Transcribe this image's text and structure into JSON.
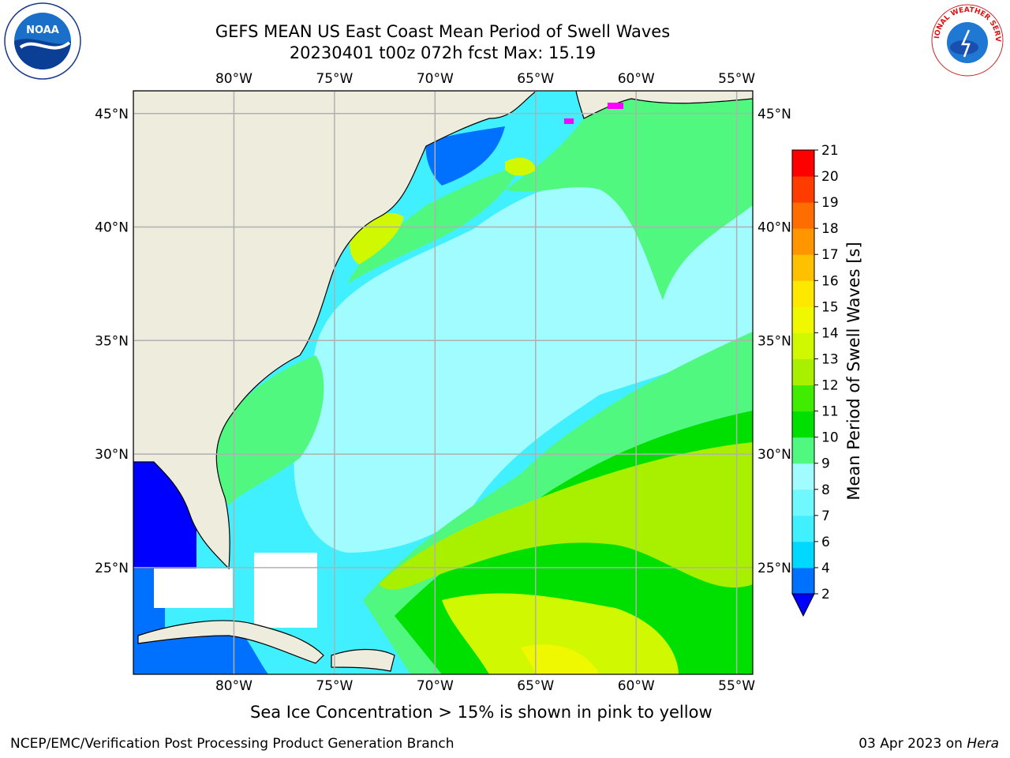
{
  "header": {
    "title_line1": "GEFS MEAN US East Coast Mean Period of Swell Waves",
    "title_line2": "20230401 t00z 072h fcst   Max: 15.19"
  },
  "logos": {
    "left": {
      "text": "NOAA",
      "ring_text": "NATIONAL OCEANIC AND ATMOSPHERIC ADMINISTRATION · U.S. DEPARTMENT OF COMMERCE",
      "icon": "noaa-logo"
    },
    "right": {
      "text": "NATIONAL WEATHER SERVICE",
      "icon": "nws-logo"
    }
  },
  "map": {
    "lon_labels": [
      "80°W",
      "75°W",
      "70°W",
      "65°W",
      "60°W",
      "55°W"
    ],
    "lat_labels": [
      "45°N",
      "40°N",
      "35°N",
      "30°N",
      "25°N"
    ],
    "lon_values": [
      -80,
      -75,
      -70,
      -65,
      -60,
      -55
    ],
    "lat_values": [
      45,
      40,
      35,
      30,
      25
    ],
    "extent": {
      "lon_min": -85,
      "lon_max": -54.2,
      "lat_min": 20.3,
      "lat_max": 46.0
    },
    "land_color": "#eeecdc",
    "grid_color": "#b0b0b0"
  },
  "colorbar": {
    "label": "Mean Period of Swell Waves [s]",
    "ticks": [
      "2",
      "4",
      "6",
      "7",
      "8",
      "9",
      "10",
      "11",
      "12",
      "13",
      "14",
      "15",
      "16",
      "17",
      "18",
      "19",
      "20",
      "21"
    ],
    "colors": [
      "#0070ff",
      "#00d8ff",
      "#40f0ff",
      "#70f8ff",
      "#a0fcff",
      "#50f880",
      "#00e000",
      "#40ec00",
      "#a8f000",
      "#d0f800",
      "#f0f800",
      "#ffe800",
      "#ffc000",
      "#ff9600",
      "#ff6c00",
      "#ff3c00",
      "#ff0000"
    ],
    "extend_color": "#0000ff"
  },
  "caption": "Sea Ice Concentration > 15% is shown in pink to yellow",
  "footer": {
    "left": "NCEP/EMC/Verification Post Processing Product Generation Branch",
    "right_date": "03 Apr 2023 on ",
    "right_host": "Hera"
  }
}
